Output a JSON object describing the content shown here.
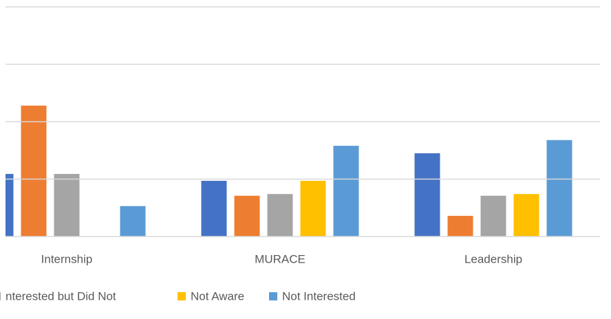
{
  "chart_data": {
    "type": "bar",
    "categories": [
      "Internship",
      "MURACE",
      "Leadership"
    ],
    "series": [
      {
        "color": "#4472c4",
        "values": [
          1.09,
          0.97,
          1.45
        ]
      },
      {
        "color": "#ed7d31",
        "values": [
          2.28,
          0.71,
          0.36
        ]
      },
      {
        "name": "nterested but Did Not",
        "color": "#a5a5a5",
        "values": [
          1.09,
          0.74,
          0.71
        ]
      },
      {
        "name": "Not Aware",
        "color": "#ffc000",
        "values": [
          null,
          0.97,
          0.74
        ]
      },
      {
        "name": "Not Interested",
        "color": "#5b9bd5",
        "values": [
          0.53,
          1.58,
          1.68
        ]
      }
    ],
    "ylim": [
      0,
      4
    ],
    "yticks": [
      0,
      1,
      2,
      3,
      4
    ],
    "grid": true,
    "legend": "bottom"
  }
}
